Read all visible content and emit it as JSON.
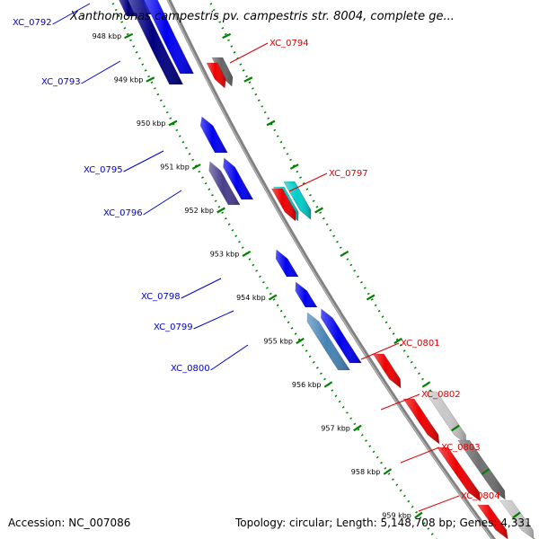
{
  "title": "Xanthomonas campestris pv. campestris str. 8004, complete ge...",
  "accession": "Accession: NC_007086",
  "topology": "Topology: circular; Length: 5,148,708 bp; Genes: 4,331",
  "scale_ticks": [
    {
      "label": "948 kbp",
      "kbp": 948
    },
    {
      "label": "949 kbp",
      "kbp": 949
    },
    {
      "label": "950 kbp",
      "kbp": 950
    },
    {
      "label": "951 kbp",
      "kbp": 951
    },
    {
      "label": "952 kbp",
      "kbp": 952
    },
    {
      "label": "953 kbp",
      "kbp": 953
    },
    {
      "label": "954 kbp",
      "kbp": 954
    },
    {
      "label": "955 kbp",
      "kbp": 955
    },
    {
      "label": "956 kbp",
      "kbp": 956
    },
    {
      "label": "957 kbp",
      "kbp": 957
    },
    {
      "label": "958 kbp",
      "kbp": 958
    },
    {
      "label": "959 kbp",
      "kbp": 959
    }
  ],
  "genes_minus": [
    {
      "name": "XC_0792",
      "color": "#2020a0"
    },
    {
      "name": "XC_0793",
      "color": "#000080"
    },
    {
      "name": "XC_0795",
      "color": "#0000ee"
    },
    {
      "name": "XC_0796",
      "color": "#483d8b"
    },
    {
      "name": "XC_0798",
      "color": "#0000ee"
    },
    {
      "name": "XC_0799",
      "color": "#0000ee"
    },
    {
      "name": "XC_0800",
      "color": "#4682b4"
    }
  ],
  "genes_plus": [
    {
      "name": "XC_0794",
      "color": "#ee0000"
    },
    {
      "name": "XC_0797",
      "color": "#00cdcd"
    },
    {
      "name": "XC_0801",
      "color": "#ee0000"
    },
    {
      "name": "XC_0802",
      "color": "#ee0000"
    },
    {
      "name": "XC_0803",
      "color": "#ee0000"
    },
    {
      "name": "XC_0804",
      "color": "#ee0000"
    }
  ],
  "colors": {
    "minus_label": "#0000cc",
    "plus_label": "#dd0000",
    "backbone": "#808080",
    "tick": "#008000"
  }
}
